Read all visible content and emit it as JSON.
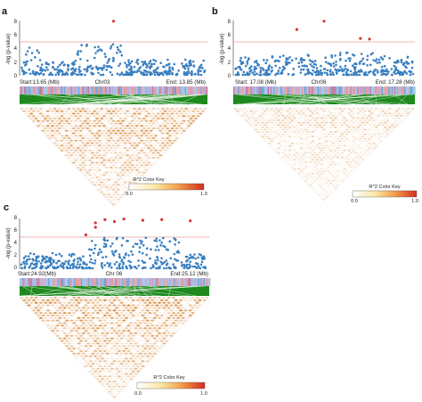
{
  "colors": {
    "point_normal": "#3a7fc1",
    "point_significant": "#d93434",
    "threshold_line": "#e07070",
    "gene_track_green": "#1e8a1e",
    "heat_low": "#ffffff",
    "heat_mid": "#f6c98a",
    "heat_high": "#d62b20"
  },
  "panels": [
    {
      "letter": "a",
      "ylabel": "-log (p-value)",
      "yticks": [
        "0",
        "2",
        "4",
        "6",
        "8"
      ],
      "start_label": "Start:13.65 (Mb)",
      "chr_label": "Chr03",
      "end_label": "End: 13.85 (Mb)",
      "color_key": {
        "title": "R^2 Color Key",
        "min_label": "0.0",
        "max_label": "1.0"
      }
    },
    {
      "letter": "b",
      "ylabel": "-log (p-value)",
      "yticks": [
        "0",
        "2",
        "4",
        "6",
        "8"
      ],
      "start_label": "Start: 17.08 (Mb)",
      "chr_label": "Chr06",
      "end_label": "End: 17.28 (Mb)",
      "color_key": {
        "title": "R^2 Color Key",
        "min_label": "0.0",
        "max_label": "1.0"
      }
    },
    {
      "letter": "c",
      "ylabel": "-log (p-value)",
      "yticks": [
        "0",
        "2",
        "4",
        "6",
        "8"
      ],
      "start_label": "Start:24.92(Mb)",
      "chr_label": "Chr 06",
      "end_label": "End:25.12 (Mb)",
      "color_key": {
        "title": "R^2 Color Key",
        "min_label": "0.0",
        "max_label": "1.0"
      }
    }
  ],
  "chart_data": [
    {
      "type": "scatter",
      "panel": "a",
      "ylabel": "-log (p-value)",
      "ylim": [
        0,
        8
      ],
      "threshold": 5.2,
      "significant_points": [
        {
          "x": 13.75,
          "y": 7.9
        }
      ]
    },
    {
      "type": "scatter",
      "panel": "b",
      "ylabel": "-log (p-value)",
      "ylim": [
        0,
        8
      ],
      "threshold": 5.2,
      "significant_points": [
        {
          "x": 17.15,
          "y": 6.7
        },
        {
          "x": 17.18,
          "y": 7.9
        },
        {
          "x": 17.22,
          "y": 5.4
        },
        {
          "x": 17.23,
          "y": 5.3
        }
      ]
    },
    {
      "type": "scatter",
      "panel": "c",
      "ylabel": "-log (p-value)",
      "ylim": [
        0,
        8
      ],
      "threshold": 5.2,
      "significant_points": [
        {
          "x": 24.99,
          "y": 5.4
        },
        {
          "x": 25.0,
          "y": 6.6
        },
        {
          "x": 25.0,
          "y": 7.3
        },
        {
          "x": 25.01,
          "y": 7.8
        },
        {
          "x": 25.02,
          "y": 7.5
        },
        {
          "x": 25.03,
          "y": 7.9
        },
        {
          "x": 25.05,
          "y": 7.7
        },
        {
          "x": 25.07,
          "y": 7.8
        },
        {
          "x": 25.1,
          "y": 7.6
        }
      ]
    }
  ]
}
